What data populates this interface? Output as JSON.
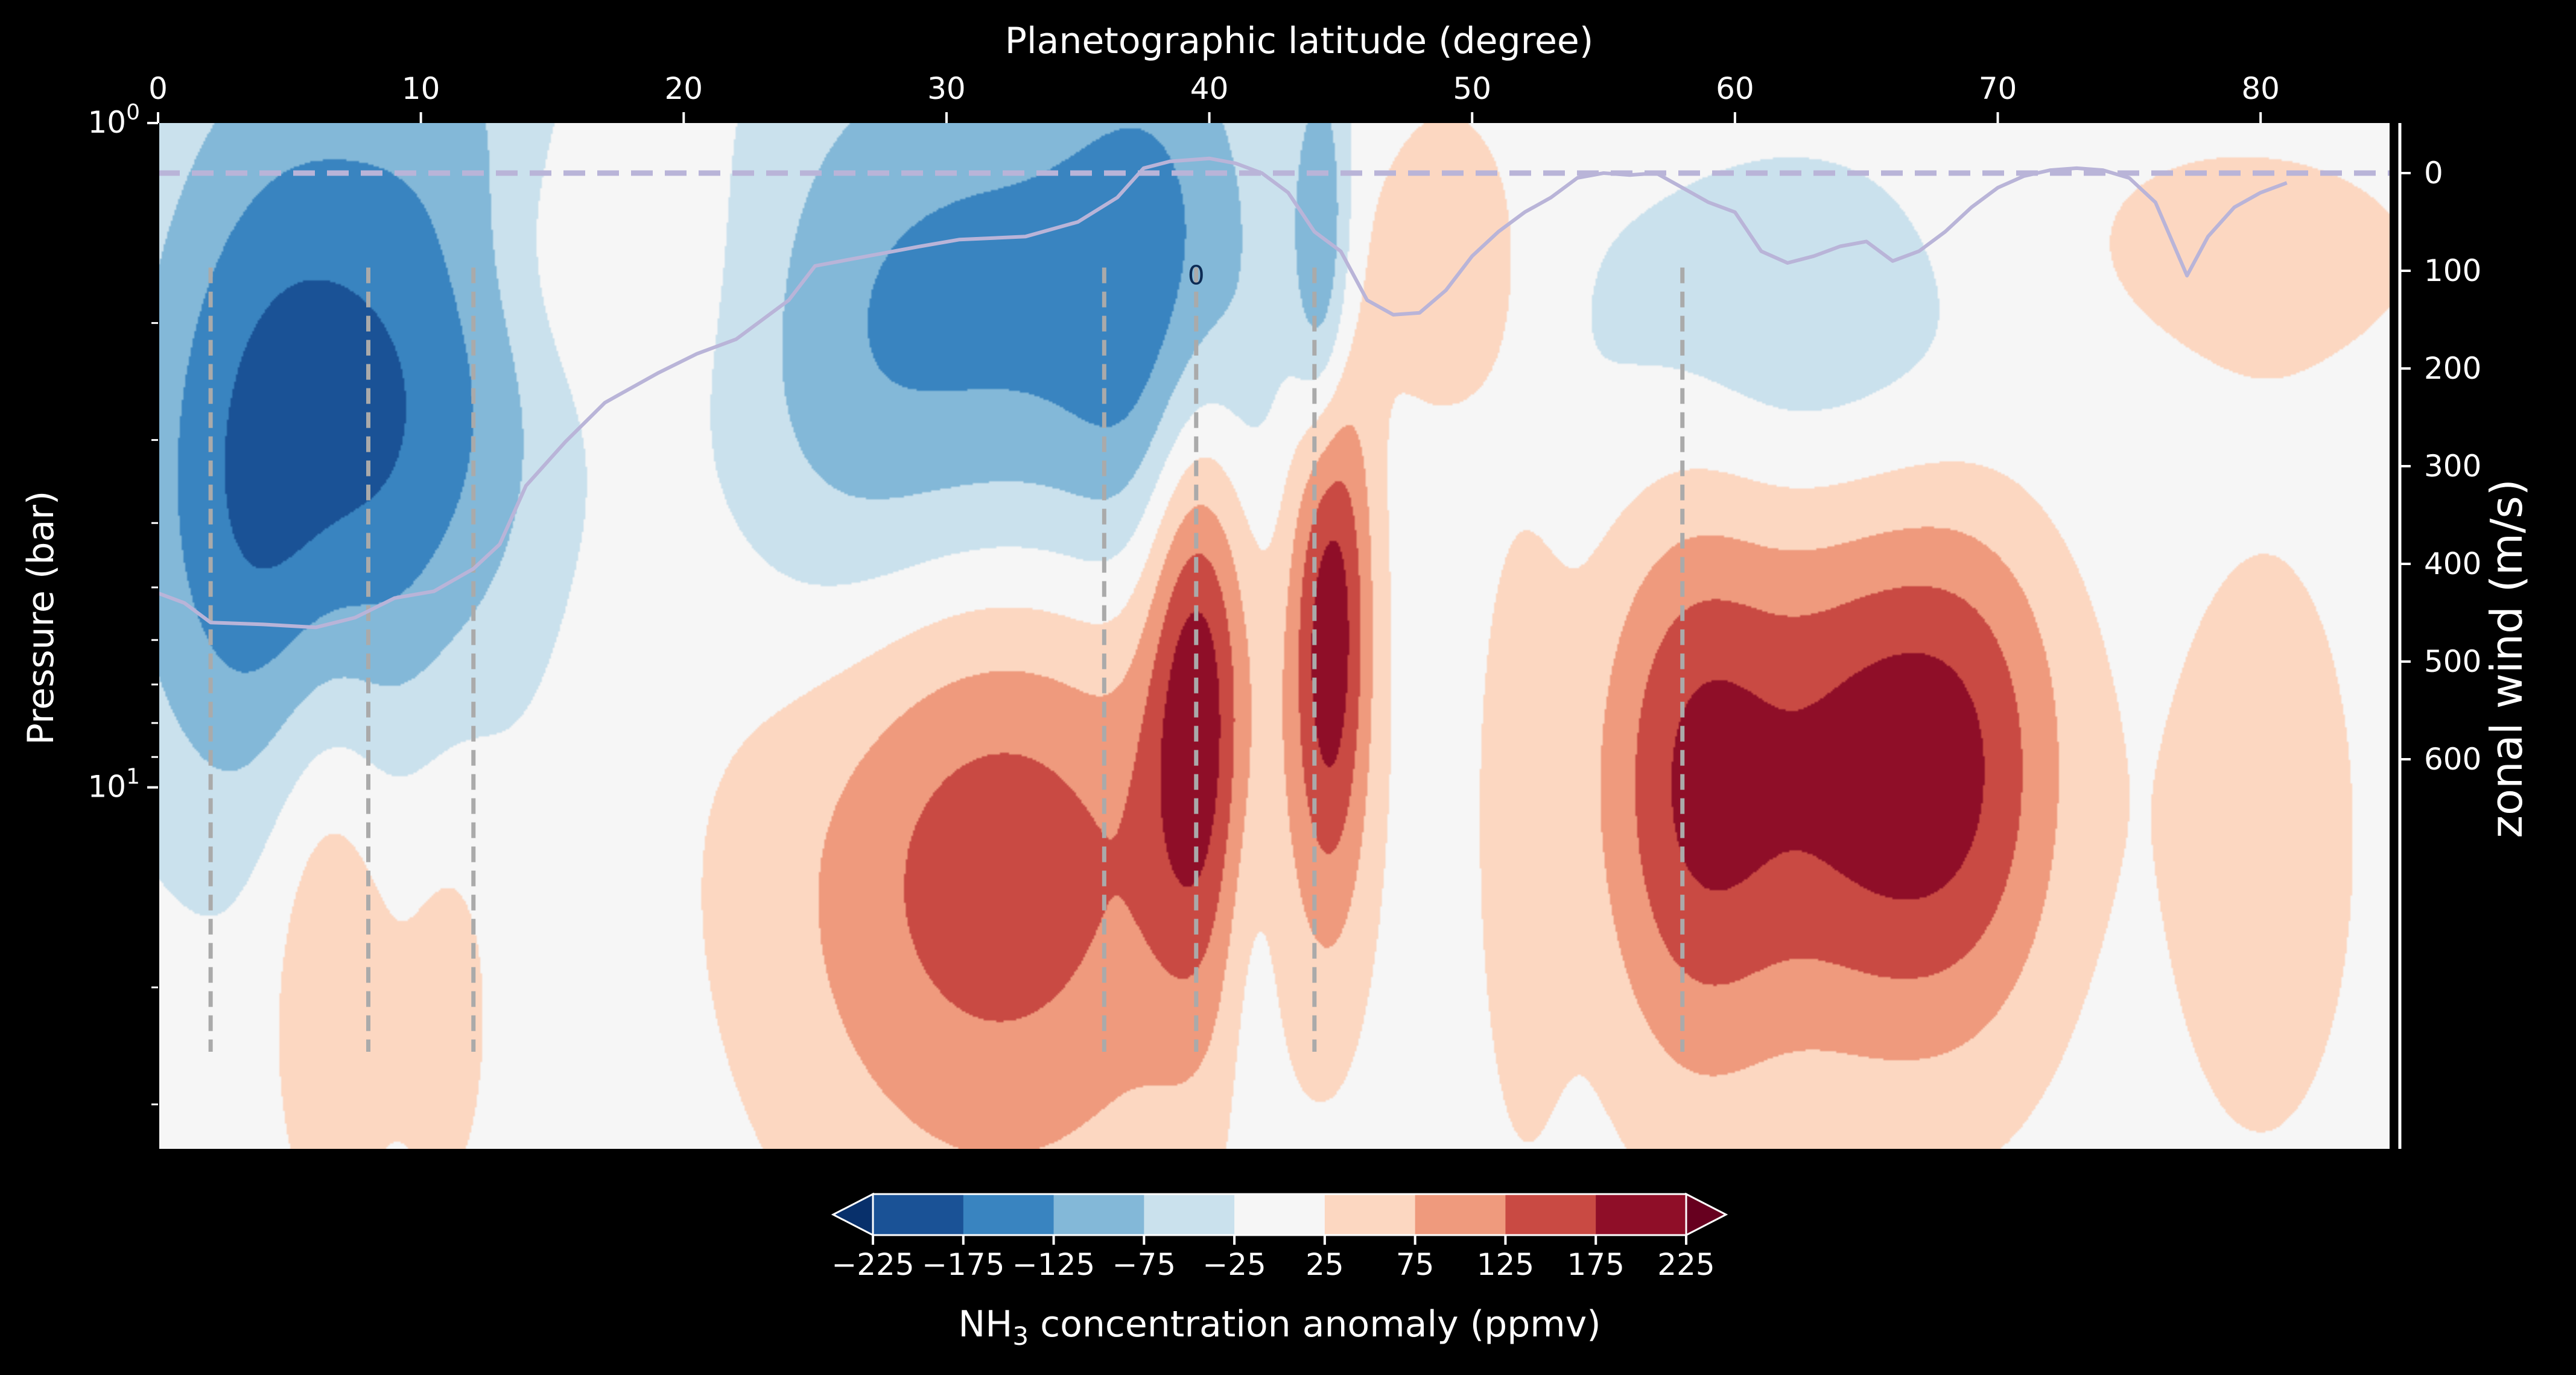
{
  "chart_data": {
    "type": "heatmap",
    "top_axis": {
      "label": "Planetographic latitude (degree)",
      "range": [
        0,
        85
      ],
      "ticks": [
        0,
        10,
        20,
        30,
        40,
        50,
        60,
        70,
        80
      ]
    },
    "left_axis": {
      "label": "Pressure (bar)",
      "scale": "log",
      "inverted": true,
      "range": [
        1,
        35
      ],
      "major_ticks": [
        1,
        10
      ],
      "major_tick_labels": [
        {
          "base": "10",
          "exp": "0"
        },
        {
          "base": "10",
          "exp": "1"
        }
      ],
      "minor_ticks": [
        2,
        3,
        4,
        5,
        6,
        7,
        8,
        9,
        20,
        30
      ]
    },
    "right_axis": {
      "label": "zonal wind (m/s)",
      "range": [
        -50,
        1000
      ],
      "ticks": [
        0,
        100,
        200,
        300,
        400,
        500,
        600
      ]
    },
    "colorbar": {
      "label_prefix": "NH",
      "label_subscript": "3",
      "label_suffix": " concentration anomaly (ppmv)",
      "levels": [
        -225,
        -175,
        -125,
        -75,
        -25,
        25,
        75,
        125,
        175,
        225
      ],
      "tick_labels": [
        "−225",
        "−175",
        "−125",
        "−75",
        "−25",
        "25",
        "75",
        "125",
        "175",
        "225"
      ],
      "colors": [
        "#1a5296",
        "#3984c0",
        "#83b8d8",
        "#cae1ed",
        "#f6f6f6",
        "#fcd7c1",
        "#ef9a7d",
        "#c94a43",
        "#8f0e28"
      ],
      "extend": "both",
      "under_color": "#08306b",
      "over_color": "#67001f"
    },
    "background_color": "#f6f6f6",
    "wind_line_color": "#b9b4d8",
    "marker_line_color": "#aaaaaa",
    "anomaly_features": [
      {
        "lat": 5.5,
        "p": 2.55,
        "sx": 4.2,
        "sy": 0.4,
        "amp": -160
      },
      {
        "lat": 12.0,
        "p": 1.8,
        "sx": 3.0,
        "sy": 0.35,
        "amp": -85
      },
      {
        "lat": 4.5,
        "p": 4.6,
        "sx": 4.5,
        "sy": 0.3,
        "amp": -70
      },
      {
        "lat": 33.0,
        "p": 2.35,
        "sx": 5.5,
        "sy": 0.38,
        "amp": -165
      },
      {
        "lat": 38.5,
        "p": 1.85,
        "sx": 2.5,
        "sy": 0.3,
        "amp": -90
      },
      {
        "lat": 44.3,
        "p": 1.7,
        "sx": 0.8,
        "sy": 0.22,
        "amp": -150
      },
      {
        "lat": 63.0,
        "p": 2.2,
        "sx": 7.0,
        "sy": 0.22,
        "amp": -70
      },
      {
        "lat": 26.0,
        "p": 2.8,
        "sx": 3.5,
        "sy": 0.35,
        "amp": -70
      },
      {
        "lat": 32.0,
        "p": 10.5,
        "sx": 6.0,
        "sy": 0.4,
        "amp": 185
      },
      {
        "lat": 39.5,
        "p": 6.3,
        "sx": 1.4,
        "sy": 0.32,
        "amp": 190
      },
      {
        "lat": 44.6,
        "p": 5.3,
        "sx": 1.1,
        "sy": 0.32,
        "amp": 215
      },
      {
        "lat": 58.5,
        "p": 9.8,
        "sx": 2.7,
        "sy": 0.32,
        "amp": 175
      },
      {
        "lat": 64.5,
        "p": 9.5,
        "sx": 3.0,
        "sy": 0.3,
        "amp": 150
      },
      {
        "lat": 69.0,
        "p": 9.3,
        "sx": 2.8,
        "sy": 0.3,
        "amp": 140
      },
      {
        "lat": 6.5,
        "p": 12.5,
        "sx": 1.8,
        "sy": 0.35,
        "amp": 90
      },
      {
        "lat": 11.0,
        "p": 18.0,
        "sx": 1.5,
        "sy": 0.3,
        "amp": 45
      },
      {
        "lat": 15.5,
        "p": 1.6,
        "sx": 3.5,
        "sy": 0.15,
        "amp": 55
      },
      {
        "lat": 49.0,
        "p": 1.65,
        "sx": 2.0,
        "sy": 0.16,
        "amp": 80
      },
      {
        "lat": 78.0,
        "p": 1.6,
        "sx": 7.0,
        "sy": 0.15,
        "amp": 45
      },
      {
        "lat": 80.0,
        "p": 12.0,
        "sx": 2.8,
        "sy": 0.35,
        "amp": 55
      },
      {
        "lat": 52.0,
        "p": 11.0,
        "sx": 1.2,
        "sy": 0.35,
        "amp": 60
      },
      {
        "lat": 41.5,
        "p": 18.0,
        "sx": 0.8,
        "sy": 0.25,
        "amp": -40
      }
    ],
    "wind_profile": [
      {
        "lat": 0.0,
        "v": 430
      },
      {
        "lat": 1.0,
        "v": 440
      },
      {
        "lat": 2.0,
        "v": 460
      },
      {
        "lat": 4.0,
        "v": 462
      },
      {
        "lat": 6.0,
        "v": 465
      },
      {
        "lat": 7.5,
        "v": 455
      },
      {
        "lat": 9.0,
        "v": 435
      },
      {
        "lat": 10.5,
        "v": 428
      },
      {
        "lat": 12.0,
        "v": 405
      },
      {
        "lat": 13.0,
        "v": 380
      },
      {
        "lat": 14.0,
        "v": 320
      },
      {
        "lat": 15.5,
        "v": 275
      },
      {
        "lat": 17.0,
        "v": 235
      },
      {
        "lat": 19.0,
        "v": 205
      },
      {
        "lat": 20.5,
        "v": 185
      },
      {
        "lat": 22.0,
        "v": 170
      },
      {
        "lat": 23.0,
        "v": 150
      },
      {
        "lat": 24.0,
        "v": 130
      },
      {
        "lat": 25.0,
        "v": 95
      },
      {
        "lat": 27.0,
        "v": 85
      },
      {
        "lat": 29.0,
        "v": 75
      },
      {
        "lat": 30.5,
        "v": 68
      },
      {
        "lat": 33.0,
        "v": 65
      },
      {
        "lat": 35.0,
        "v": 50
      },
      {
        "lat": 36.5,
        "v": 25
      },
      {
        "lat": 37.5,
        "v": -5
      },
      {
        "lat": 38.5,
        "v": -12
      },
      {
        "lat": 40.0,
        "v": -15
      },
      {
        "lat": 41.0,
        "v": -10
      },
      {
        "lat": 42.0,
        "v": 0
      },
      {
        "lat": 43.0,
        "v": 20
      },
      {
        "lat": 44.0,
        "v": 60
      },
      {
        "lat": 45.0,
        "v": 80
      },
      {
        "lat": 46.0,
        "v": 130
      },
      {
        "lat": 47.0,
        "v": 145
      },
      {
        "lat": 48.0,
        "v": 143
      },
      {
        "lat": 49.0,
        "v": 120
      },
      {
        "lat": 50.0,
        "v": 85
      },
      {
        "lat": 51.0,
        "v": 60
      },
      {
        "lat": 52.0,
        "v": 40
      },
      {
        "lat": 53.0,
        "v": 25
      },
      {
        "lat": 54.0,
        "v": 5
      },
      {
        "lat": 55.0,
        "v": 0
      },
      {
        "lat": 56.0,
        "v": 2
      },
      {
        "lat": 57.0,
        "v": 0
      },
      {
        "lat": 58.0,
        "v": 15
      },
      {
        "lat": 59.0,
        "v": 30
      },
      {
        "lat": 60.0,
        "v": 40
      },
      {
        "lat": 61.0,
        "v": 80
      },
      {
        "lat": 62.0,
        "v": 92
      },
      {
        "lat": 63.0,
        "v": 85
      },
      {
        "lat": 64.0,
        "v": 75
      },
      {
        "lat": 65.0,
        "v": 70
      },
      {
        "lat": 66.0,
        "v": 90
      },
      {
        "lat": 67.0,
        "v": 80
      },
      {
        "lat": 68.0,
        "v": 60
      },
      {
        "lat": 69.0,
        "v": 35
      },
      {
        "lat": 70.0,
        "v": 15
      },
      {
        "lat": 71.0,
        "v": 3
      },
      {
        "lat": 72.0,
        "v": -3
      },
      {
        "lat": 73.0,
        "v": -5
      },
      {
        "lat": 74.0,
        "v": -3
      },
      {
        "lat": 75.0,
        "v": 5
      },
      {
        "lat": 76.0,
        "v": 30
      },
      {
        "lat": 77.2,
        "v": 105
      },
      {
        "lat": 78.0,
        "v": 65
      },
      {
        "lat": 79.0,
        "v": 35
      },
      {
        "lat": 80.0,
        "v": 20
      },
      {
        "lat": 81.0,
        "v": 10
      }
    ],
    "wind_zero_line": 0,
    "marker_latitudes": [
      2,
      8,
      12,
      36,
      39.5,
      44,
      58
    ],
    "marker_pressure_range": [
      1.65,
      25
    ],
    "small_marker": {
      "lat": 39.5,
      "p": 1.75,
      "label": "0"
    }
  }
}
